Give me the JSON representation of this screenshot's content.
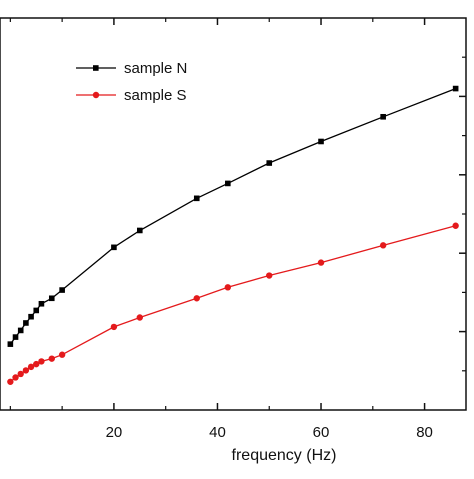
{
  "chart_data": {
    "type": "line",
    "title": "",
    "xlabel": "frequency (Hz)",
    "ylabel": "",
    "xlim": [
      -2,
      88
    ],
    "ylim": [
      0,
      1
    ],
    "x_ticks": [
      20,
      40,
      60,
      80
    ],
    "x_tick_labels": [
      "20",
      "40",
      "60",
      "80"
    ],
    "grid": false,
    "legend_position": "top-left",
    "series": [
      {
        "name": "sample N",
        "color": "#000000",
        "marker": "square",
        "points": [
          {
            "x": 0,
            "y": 0.168
          },
          {
            "x": 1,
            "y": 0.186
          },
          {
            "x": 2,
            "y": 0.203
          },
          {
            "x": 3,
            "y": 0.222
          },
          {
            "x": 4,
            "y": 0.238
          },
          {
            "x": 5,
            "y": 0.254
          },
          {
            "x": 6,
            "y": 0.271
          },
          {
            "x": 8,
            "y": 0.285
          },
          {
            "x": 10,
            "y": 0.306
          },
          {
            "x": 20,
            "y": 0.415
          },
          {
            "x": 25,
            "y": 0.458
          },
          {
            "x": 36,
            "y": 0.54
          },
          {
            "x": 42,
            "y": 0.578
          },
          {
            "x": 50,
            "y": 0.63
          },
          {
            "x": 60,
            "y": 0.685
          },
          {
            "x": 72,
            "y": 0.748
          },
          {
            "x": 86,
            "y": 0.82
          }
        ]
      },
      {
        "name": "sample S",
        "color": "#e41a1c",
        "marker": "circle",
        "points": [
          {
            "x": 0,
            "y": 0.072
          },
          {
            "x": 1,
            "y": 0.083
          },
          {
            "x": 2,
            "y": 0.092
          },
          {
            "x": 3,
            "y": 0.101
          },
          {
            "x": 4,
            "y": 0.11
          },
          {
            "x": 5,
            "y": 0.117
          },
          {
            "x": 6,
            "y": 0.124
          },
          {
            "x": 8,
            "y": 0.131
          },
          {
            "x": 10,
            "y": 0.141
          },
          {
            "x": 20,
            "y": 0.212
          },
          {
            "x": 25,
            "y": 0.236
          },
          {
            "x": 36,
            "y": 0.285
          },
          {
            "x": 42,
            "y": 0.313
          },
          {
            "x": 50,
            "y": 0.343
          },
          {
            "x": 60,
            "y": 0.376
          },
          {
            "x": 72,
            "y": 0.42
          },
          {
            "x": 86,
            "y": 0.47
          }
        ]
      }
    ]
  }
}
